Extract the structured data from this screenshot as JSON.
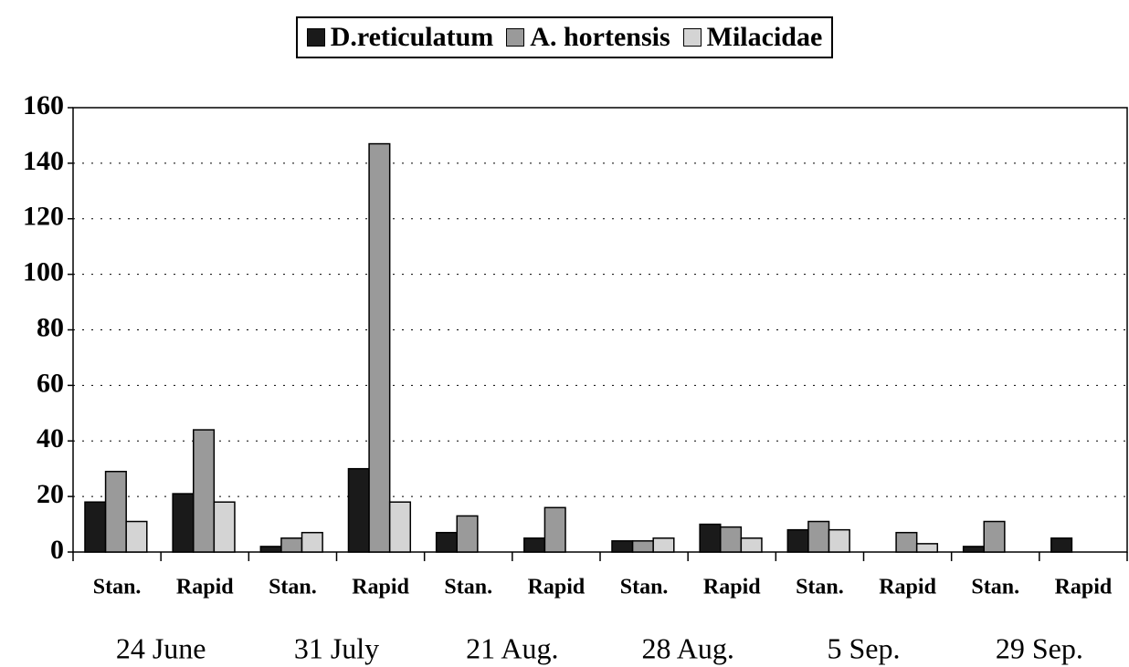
{
  "chart_data": {
    "type": "bar",
    "categories": [
      "Stan.",
      "Rapid",
      "Stan.",
      "Rapid",
      "Stan.",
      "Rapid",
      "Stan.",
      "Rapid",
      "Stan.",
      "Rapid",
      "Stan.",
      "Rapid"
    ],
    "groups": [
      "24 June",
      "31 July",
      "21 Aug.",
      "28 Aug.",
      "5 Sep.",
      "29 Sep."
    ],
    "series": [
      {
        "name": "D.reticulatum",
        "color": "#1a1a1a",
        "values": [
          18,
          21,
          2,
          30,
          7,
          5,
          4,
          10,
          8,
          0,
          2,
          5
        ]
      },
      {
        "name": "A. hortensis",
        "color": "#9a9a9a",
        "values": [
          29,
          44,
          5,
          147,
          13,
          16,
          4,
          9,
          11,
          7,
          11,
          0
        ]
      },
      {
        "name": "Milacidae",
        "color": "#d4d4d4",
        "values": [
          11,
          18,
          7,
          18,
          0,
          0,
          5,
          5,
          8,
          3,
          0,
          0
        ]
      }
    ],
    "ylim": [
      0,
      160
    ],
    "yticks": [
      0,
      20,
      40,
      60,
      80,
      100,
      120,
      140,
      160
    ],
    "grid": true
  }
}
